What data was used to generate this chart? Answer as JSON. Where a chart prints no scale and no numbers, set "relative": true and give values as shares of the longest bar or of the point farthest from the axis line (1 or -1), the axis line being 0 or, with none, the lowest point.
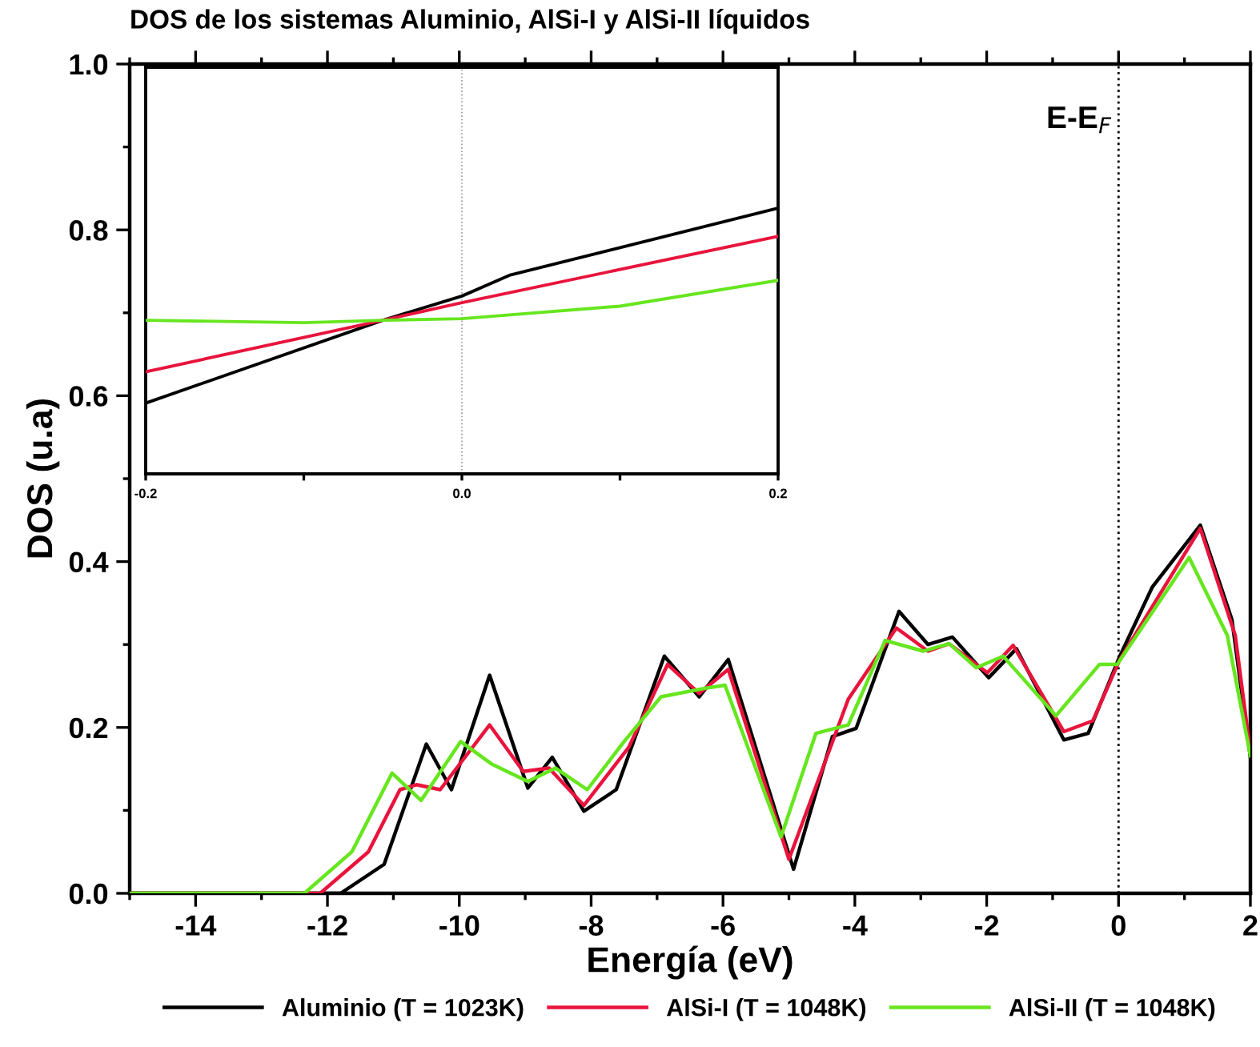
{
  "chart_data": [
    {
      "type": "line",
      "title": "DOS de los sistemas Aluminio, AlSi-I y AlSi-II líquidos",
      "xlabel": "Energía (eV)",
      "ylabel": "DOS (u.a)",
      "xlim": [
        -15,
        2
      ],
      "xticks": [
        -14,
        -12,
        -10,
        -8,
        -6,
        -4,
        -2,
        0,
        2
      ],
      "ylim": [
        0,
        1
      ],
      "yticks": [
        {
          "value": 0,
          "label": "0.0"
        },
        {
          "value": 0.2,
          "label": "0.2"
        },
        {
          "value": 0.4,
          "label": "0.4"
        },
        {
          "value": 0.6,
          "label": "0.6"
        },
        {
          "value": 0.8,
          "label": "0.8"
        },
        {
          "value": 1,
          "label": "1.0"
        }
      ],
      "grid": false,
      "legend": "bottom",
      "marker": "none",
      "line_style": "solid",
      "ref_lines": [
        {
          "axis": "x",
          "value": 0,
          "label": "E-E$_{F}$",
          "line_style": "dotted",
          "color": "#000000"
        }
      ],
      "series": [
        {
          "name": "Aluminio (T = 1023K)",
          "color": "#000000",
          "x": [
            -15,
            -11.8,
            -11.14,
            -10.5,
            -10.12,
            -9.54,
            -8.96,
            -8.59,
            -8.11,
            -7.62,
            -6.89,
            -6.36,
            -5.92,
            -4.93,
            -4.34,
            -3.98,
            -3.33,
            -2.89,
            -2.52,
            -1.97,
            -1.55,
            -0.83,
            -0.46,
            0.02,
            0.51,
            1.24,
            1.72,
            2
          ],
          "values": [
            0,
            0,
            0.035,
            0.18,
            0.125,
            0.263,
            0.127,
            0.164,
            0.099,
            0.125,
            0.286,
            0.237,
            0.282,
            0.029,
            0.189,
            0.199,
            0.34,
            0.3,
            0.309,
            0.26,
            0.295,
            0.185,
            0.193,
            0.286,
            0.369,
            0.444,
            0.33,
            0.164
          ]
        },
        {
          "name": "AlSi-I (T = 1048K)",
          "color": "#e8143c",
          "x": [
            -15,
            -12.11,
            -11.38,
            -10.9,
            -10.65,
            -10.29,
            -9.54,
            -9.03,
            -8.64,
            -8.11,
            -7.43,
            -6.84,
            -6.36,
            -5.92,
            -5.0,
            -4.1,
            -3.37,
            -2.89,
            -2.57,
            -1.99,
            -1.6,
            -0.83,
            -0.39,
            0.02,
            1.24,
            1.77,
            2
          ],
          "values": [
            0,
            0,
            0.05,
            0.125,
            0.131,
            0.125,
            0.203,
            0.147,
            0.151,
            0.106,
            0.176,
            0.276,
            0.241,
            0.27,
            0.041,
            0.234,
            0.32,
            0.292,
            0.301,
            0.266,
            0.299,
            0.195,
            0.208,
            0.282,
            0.44,
            0.311,
            0.17
          ]
        },
        {
          "name": "AlSi-II (T = 1048K)",
          "color": "#66e61e",
          "x": [
            -15,
            -12.35,
            -11.63,
            -11.02,
            -10.58,
            -9.98,
            -9.51,
            -8.96,
            -8.54,
            -8.06,
            -7.5,
            -6.94,
            -6.29,
            -5.97,
            -5.12,
            -4.59,
            -4.1,
            -3.54,
            -2.96,
            -2.57,
            -2.16,
            -1.75,
            -0.95,
            -0.29,
            -0.02,
            1.07,
            1.65,
            2
          ],
          "values": [
            0,
            0,
            0.05,
            0.145,
            0.112,
            0.183,
            0.156,
            0.135,
            0.151,
            0.125,
            0.183,
            0.237,
            0.247,
            0.251,
            0.068,
            0.193,
            0.203,
            0.305,
            0.292,
            0.301,
            0.272,
            0.286,
            0.214,
            0.276,
            0.276,
            0.405,
            0.311,
            0.166
          ]
        }
      ]
    },
    {
      "type": "line",
      "xlim": [
        -0.2,
        0.2
      ],
      "xticks": [
        {
          "value": -0.2,
          "label": "-0.2"
        },
        {
          "value": 0,
          "label": "0.0"
        },
        {
          "value": 0.2,
          "label": "0.2"
        }
      ],
      "relative": true,
      "tick_labels": "x",
      "grid": false,
      "marker": "none",
      "line_style": "solid",
      "ref_lines": [
        {
          "axis": "x",
          "value": 0,
          "line_style": "dotted",
          "color": "#999999"
        }
      ],
      "series": [
        {
          "color": "#000000",
          "x": [
            -0.2,
            -0.05,
            0,
            0.03,
            0.2
          ],
          "values": [
            0.266,
            0.578,
            0.669,
            0.747,
            1
          ]
        },
        {
          "color": "#e8143c",
          "x": [
            -0.2,
            -0.05,
            0,
            0.2
          ],
          "values": [
            0.384,
            0.578,
            0.644,
            0.894
          ]
        },
        {
          "color": "#66e61e",
          "x": [
            -0.2,
            -0.1,
            -0.05,
            0,
            0.1,
            0.2
          ],
          "values": [
            0.578,
            0.569,
            0.578,
            0.584,
            0.631,
            0.728
          ]
        }
      ]
    }
  ]
}
